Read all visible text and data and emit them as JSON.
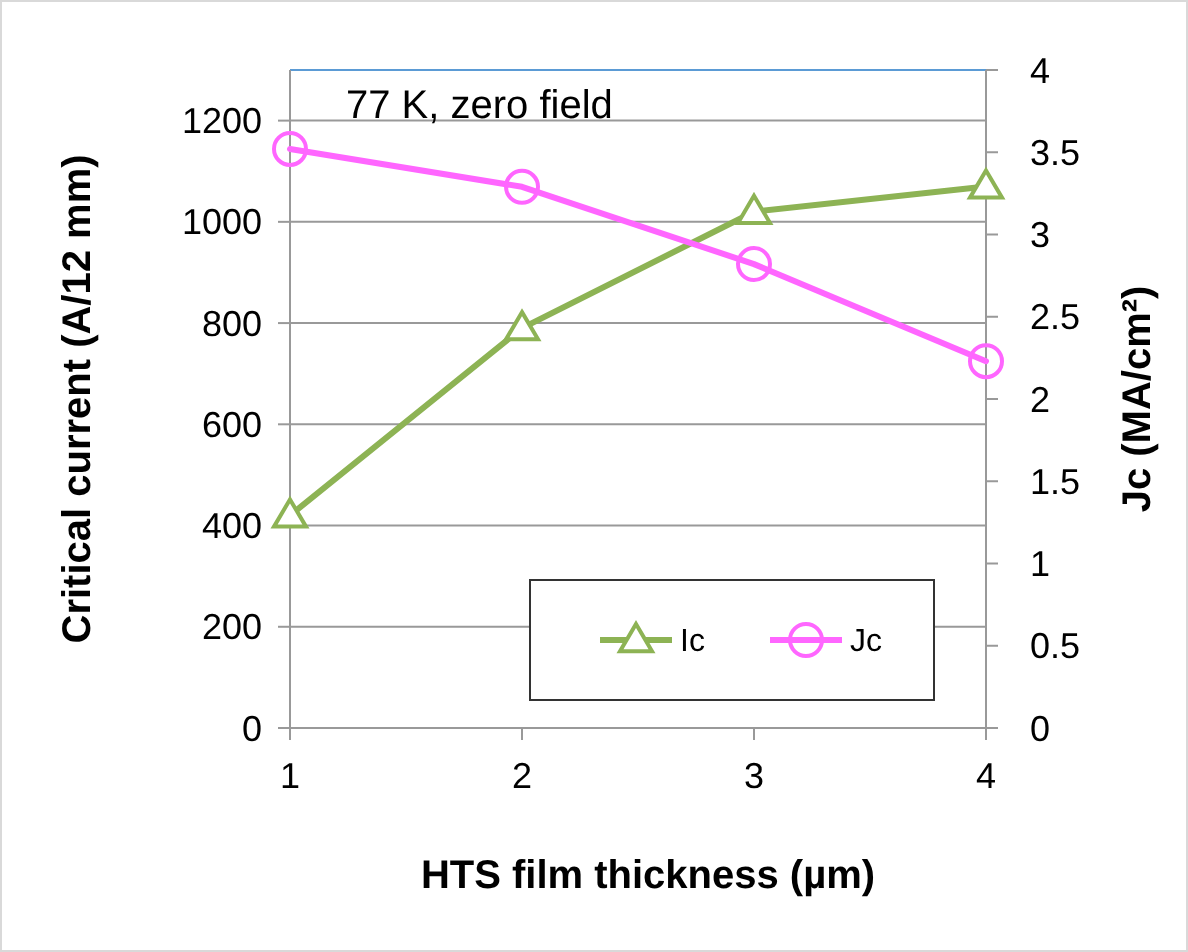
{
  "chart_data": {
    "type": "line",
    "xlabel": "HTS film thickness (µm)",
    "ylabel": "Critical current (A/12 mm)",
    "y2label": "Jc (MA/cm²)",
    "x": [
      1,
      2,
      3,
      4
    ],
    "series": [
      {
        "name": "Ic",
        "color": "#8db354",
        "values": [
          420,
          790,
          1020,
          1070
        ],
        "marker": "triangle"
      },
      {
        "name": "Jc",
        "color": "#ff66ff",
        "values": [
          3.52,
          3.29,
          2.82,
          2.23
        ],
        "marker": "circle",
        "axis": "y2"
      }
    ],
    "xlim": [
      1,
      4
    ],
    "xticks": [
      1,
      2,
      3,
      4
    ],
    "ylim": [
      0,
      1300
    ],
    "yticks": [
      0,
      200,
      400,
      600,
      800,
      1000,
      1200
    ],
    "y2lim": [
      0,
      4
    ],
    "y2ticks": [
      0,
      0.5,
      1,
      1.5,
      2,
      2.5,
      3,
      3.5,
      4
    ],
    "grid": "y",
    "legend": "bottom right",
    "line_style": "solid",
    "annotations": [
      "77 K, zero field"
    ]
  }
}
